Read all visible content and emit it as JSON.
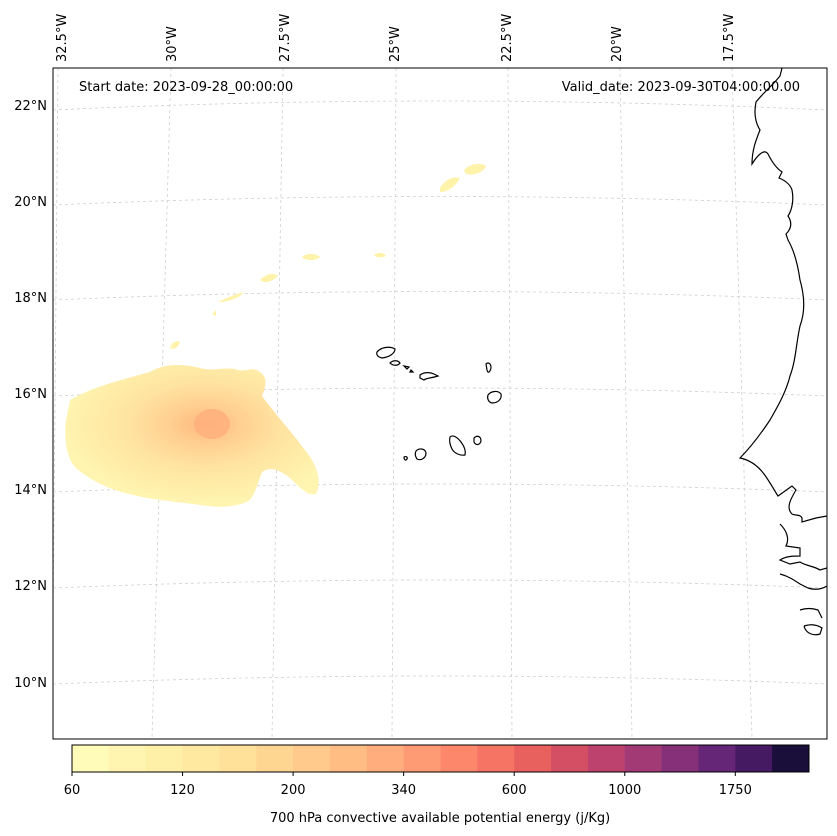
{
  "map": {
    "start_date": "Start date: 2023-09-28_00:00:00",
    "valid_date": "Valid_date: 2023-09-30T04:00:00.00",
    "lon_labels": [
      "32.5°W",
      "30°W",
      "27.5°W",
      "25°W",
      "22.5°W",
      "20°W",
      "17.5°W"
    ],
    "lat_labels": [
      "22°N",
      "20°N",
      "18°N",
      "16°N",
      "14°N",
      "12°N",
      "10°N"
    ]
  },
  "colorbar": {
    "label": "700 hPa convective available potential energy (j/Kg)",
    "ticks": [
      "60",
      "120",
      "200",
      "340",
      "600",
      "1000",
      "1750"
    ],
    "colors": [
      "#fffbb9",
      "#fff5b0",
      "#fff0a8",
      "#ffe9a0",
      "#ffe199",
      "#ffd592",
      "#ffca8b",
      "#ffbd84",
      "#ffad7d",
      "#ff9b74",
      "#fd876b",
      "#f57463",
      "#e8615f",
      "#d54f64",
      "#bd436e",
      "#a23a75",
      "#853078",
      "#662677",
      "#461a62",
      "#1a0f3a"
    ]
  }
}
